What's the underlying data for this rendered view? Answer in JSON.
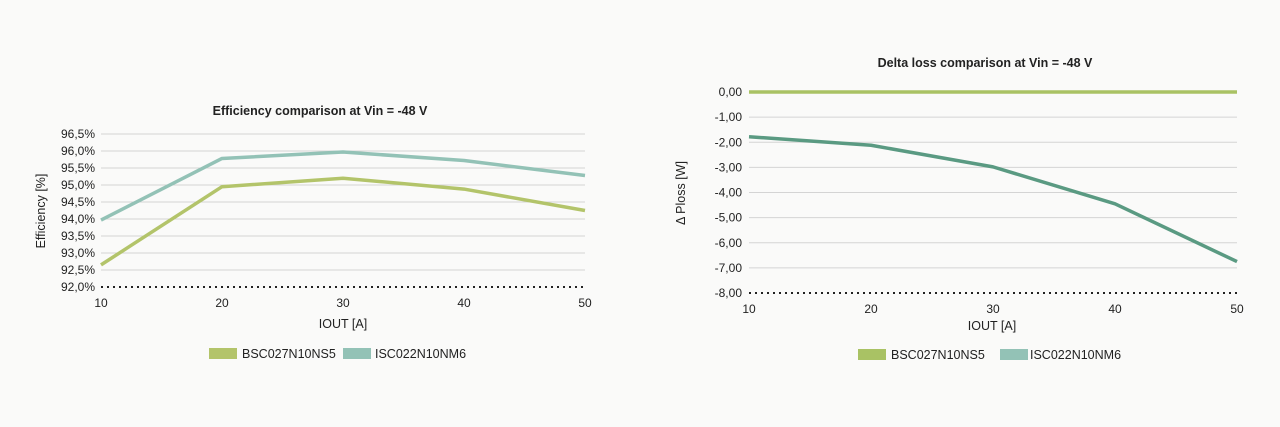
{
  "colors": {
    "bsc": "#b3c46a",
    "isc": "#93c2b6",
    "delta": "#5a9a82",
    "zero": "#a9c264",
    "grid": "#d4d4d4",
    "dotted_axis": "#222222"
  },
  "chart_data": [
    {
      "type": "line",
      "title": "Efficiency comparison at Vin = -48 V",
      "xlabel": "IOUT [A]",
      "ylabel": "Efficiency [%]",
      "x": [
        10,
        20,
        30,
        40,
        50
      ],
      "x_ticks": [
        "10",
        "20",
        "30",
        "40",
        "50"
      ],
      "ylim": [
        92.0,
        96.5
      ],
      "y_tick_values": [
        92.0,
        92.5,
        93.0,
        93.5,
        94.0,
        94.5,
        95.0,
        95.5,
        96.0,
        96.5
      ],
      "y_ticks": [
        "92,0%",
        "92,5%",
        "93,0%",
        "93,5%",
        "94,0%",
        "94,5%",
        "95,0%",
        "95,5%",
        "96,0%",
        "96,5%"
      ],
      "grid": true,
      "legend_position": "bottom",
      "series": [
        {
          "name": "BSC027N10NS5",
          "values": [
            92.65,
            94.95,
            95.2,
            94.88,
            94.25
          ]
        },
        {
          "name": "ISC022N10NM6",
          "values": [
            93.97,
            95.78,
            95.97,
            95.72,
            95.28
          ]
        }
      ]
    },
    {
      "type": "line",
      "title": "Delta loss comparison at Vin = -48 V",
      "xlabel": "IOUT [A]",
      "ylabel": "Δ Ploss [W]",
      "x": [
        10,
        20,
        30,
        40,
        50
      ],
      "x_ticks": [
        "10",
        "20",
        "30",
        "40",
        "50"
      ],
      "ylim": [
        -8.0,
        0.0
      ],
      "y_tick_values": [
        0,
        -1,
        -2,
        -3,
        -4,
        -5,
        -6,
        -7,
        -8
      ],
      "y_ticks": [
        "0,00",
        "-1,00",
        "-2,00",
        "-3,00",
        "-4,00",
        "-5,00",
        "-6,00",
        "-7,00",
        "-8,00"
      ],
      "grid": true,
      "legend_position": "bottom",
      "series": [
        {
          "name": "BSC027N10NS5",
          "values": [
            0,
            0,
            0,
            0,
            0
          ]
        },
        {
          "name": "ISC022N10NM6",
          "values": [
            -1.78,
            -2.12,
            -2.98,
            -4.45,
            -6.75
          ]
        }
      ]
    }
  ]
}
